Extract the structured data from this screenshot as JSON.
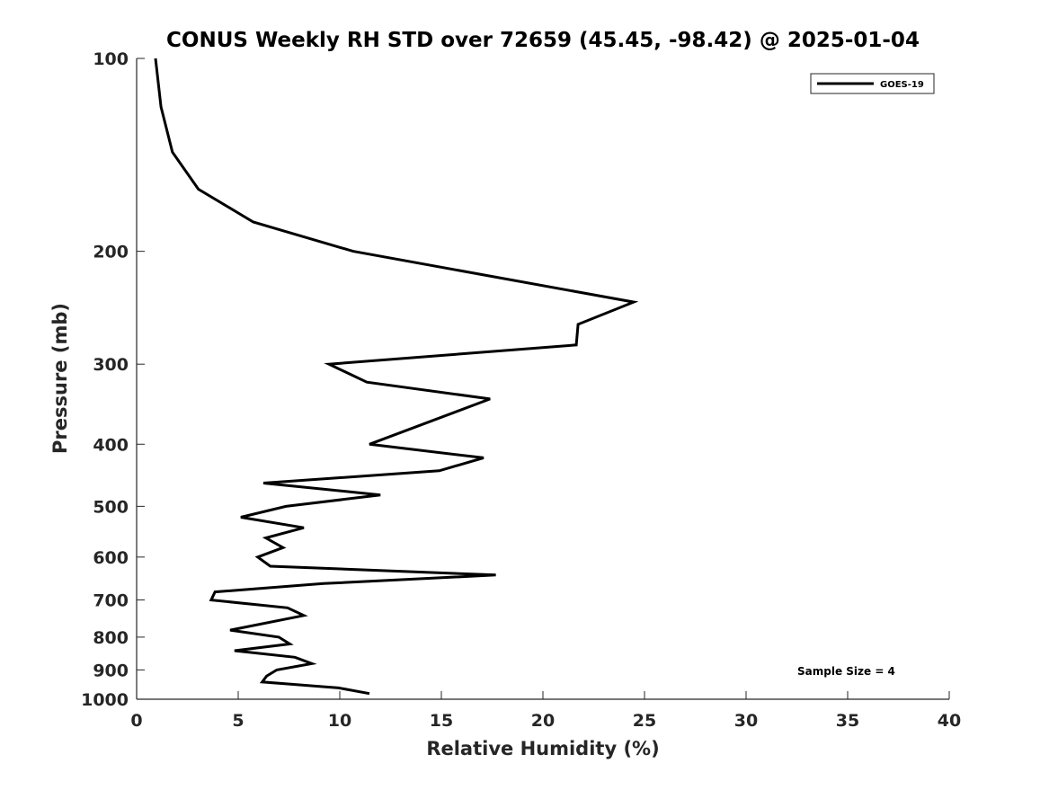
{
  "chart_data": {
    "type": "line",
    "title": "CONUS Weekly RH STD over 72659 (45.45, -98.42) @ 2025-01-04",
    "xlabel": "Relative Humidity (%)",
    "ylabel": "Pressure (mb)",
    "xlim": [
      0,
      40
    ],
    "ylim": [
      100,
      1000
    ],
    "yscale": "log",
    "y_reversed": true,
    "grid": false,
    "xticks": [
      "0",
      "5",
      "10",
      "15",
      "20",
      "25",
      "30",
      "35",
      "40"
    ],
    "yticks": [
      "100",
      "200",
      "300",
      "400",
      "500",
      "600",
      "700",
      "800",
      "900",
      "1000"
    ],
    "legend": {
      "placement": "top-right",
      "entries": [
        "GOES-19"
      ]
    },
    "annotation": "Sample Size = 4",
    "series": [
      {
        "name": "GOES-19",
        "color": "#000000",
        "x": [
          0.93,
          1.2,
          1.76,
          3.04,
          5.74,
          10.66,
          24.47,
          21.73,
          21.64,
          9.47,
          11.33,
          17.4,
          11.46,
          17.08,
          14.9,
          6.24,
          12.0,
          7.35,
          5.13,
          8.23,
          6.36,
          7.21,
          5.96,
          6.58,
          17.68,
          9.2,
          3.86,
          3.67,
          7.43,
          8.23,
          4.6,
          7.0,
          7.54,
          4.82,
          7.79,
          8.63,
          6.9,
          6.4,
          6.18,
          9.94,
          11.46
        ],
        "pressure": [
          100,
          119,
          140,
          160,
          180,
          200,
          240,
          260,
          280,
          300,
          320,
          340,
          400,
          420,
          440,
          460,
          480,
          500,
          520,
          540,
          560,
          580,
          600,
          620,
          640,
          660,
          680,
          700,
          720,
          740,
          780,
          800,
          820,
          840,
          860,
          880,
          900,
          920,
          940,
          960,
          980
        ]
      }
    ]
  }
}
